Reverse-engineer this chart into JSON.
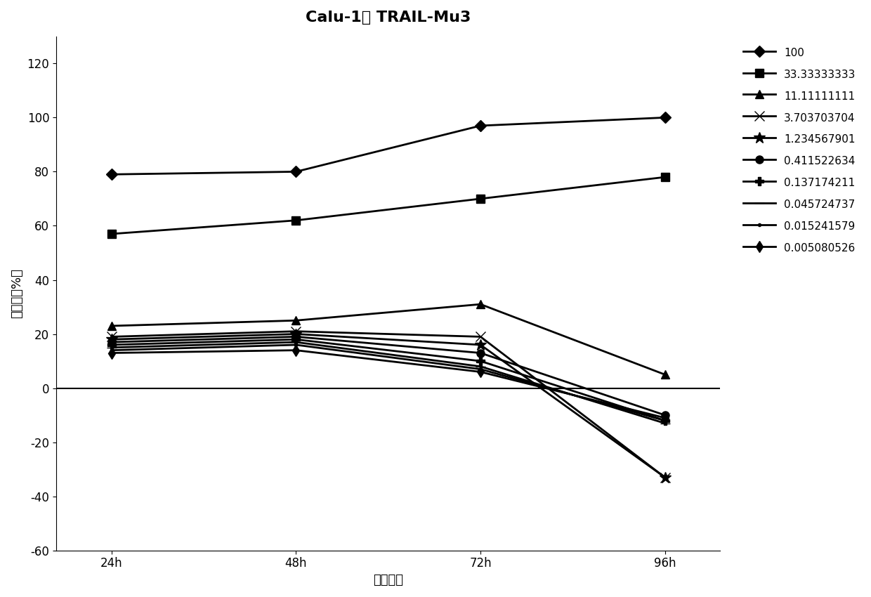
{
  "title": "Calu-1： TRAIL-Mu3",
  "xlabel": "作用时间",
  "ylabel": "抑制率（%）",
  "x_labels": [
    "24h",
    "48h",
    "72h",
    "96h"
  ],
  "x_values": [
    0,
    1,
    2,
    3
  ],
  "ylim": [
    -60,
    130
  ],
  "yticks": [
    -60,
    -40,
    -20,
    0,
    20,
    40,
    60,
    80,
    100,
    120
  ],
  "series": [
    {
      "label": "100",
      "values": [
        79,
        80,
        97,
        100
      ],
      "marker": "D",
      "markersize": 8,
      "linewidth": 2
    },
    {
      "label": "33.33333333",
      "values": [
        57,
        62,
        70,
        78
      ],
      "marker": "s",
      "markersize": 8,
      "linewidth": 2
    },
    {
      "label": "11.11111111",
      "values": [
        23,
        25,
        31,
        5
      ],
      "marker": "^",
      "markersize": 8,
      "linewidth": 2
    },
    {
      "label": "3.703703704",
      "values": [
        19,
        21,
        19,
        -33
      ],
      "marker": "x",
      "markersize": 10,
      "linewidth": 2
    },
    {
      "label": "1.234567901",
      "values": [
        18,
        20,
        16,
        -33
      ],
      "marker": "*",
      "markersize": 12,
      "linewidth": 2
    },
    {
      "label": "0.411522634",
      "values": [
        17,
        19,
        13,
        -10
      ],
      "marker": "o",
      "markersize": 8,
      "linewidth": 2
    },
    {
      "label": "0.137174211",
      "values": [
        16,
        18,
        10,
        -12
      ],
      "marker": "P",
      "markersize": 8,
      "linewidth": 2
    },
    {
      "label": "0.045724737",
      "values": [
        15,
        17,
        8,
        -13
      ],
      "marker": "_",
      "markersize": 10,
      "linewidth": 2
    },
    {
      "label": "0.015241579",
      "values": [
        14,
        16,
        7,
        -12
      ],
      "marker": ".",
      "markersize": 6,
      "linewidth": 2
    },
    {
      "label": "0.005080526",
      "values": [
        13,
        14,
        6,
        -11
      ],
      "marker": "d",
      "markersize": 8,
      "linewidth": 2
    }
  ],
  "line_color": "black",
  "background_color": "white",
  "title_fontsize": 16,
  "axis_fontsize": 13,
  "tick_fontsize": 12,
  "legend_fontsize": 11
}
